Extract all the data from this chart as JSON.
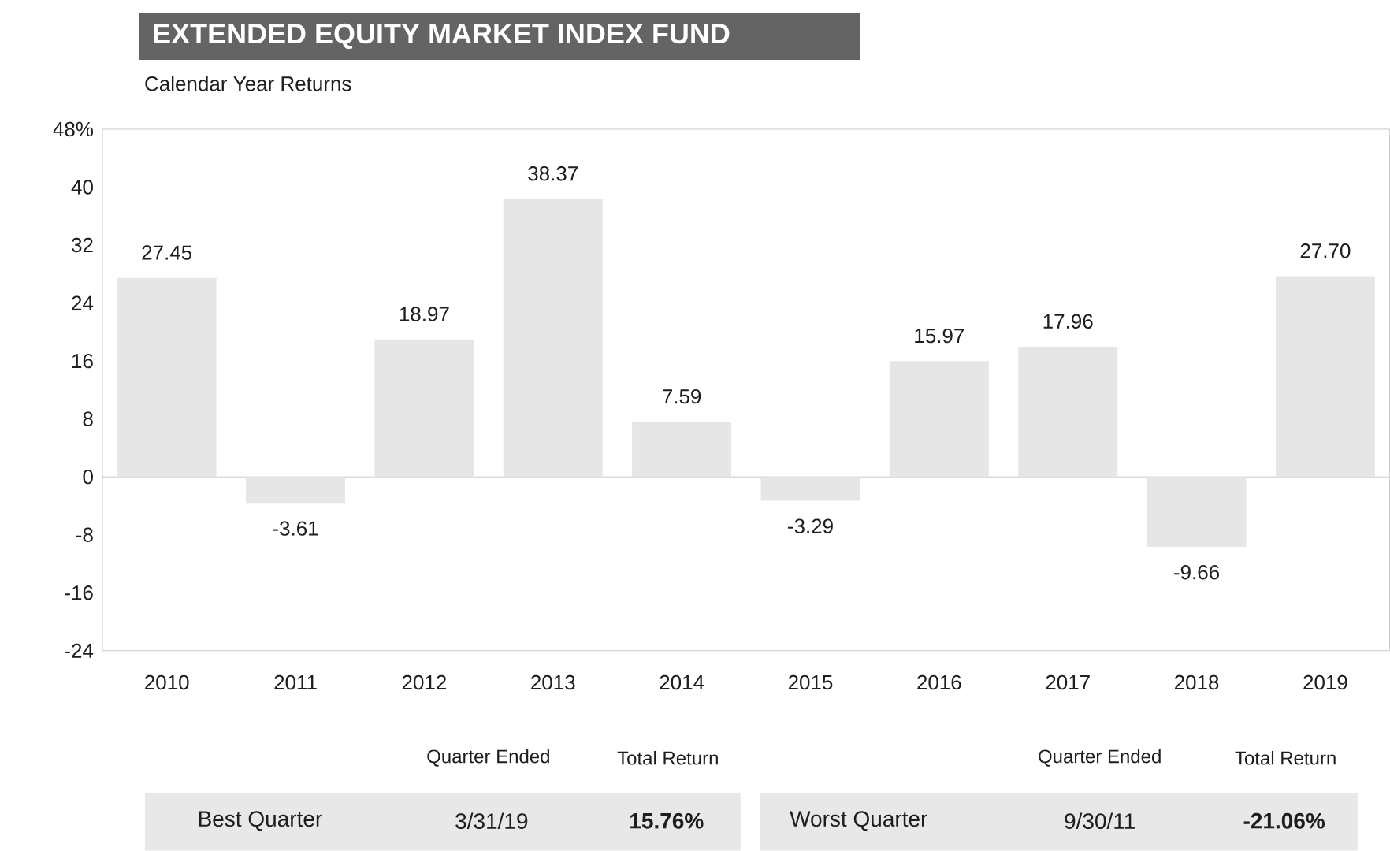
{
  "chart_data": {
    "type": "bar",
    "title": "EXTENDED EQUITY MARKET INDEX FUND",
    "subtitle": "Calendar Year Returns",
    "categories": [
      "2010",
      "2011",
      "2012",
      "2013",
      "2014",
      "2015",
      "2016",
      "2017",
      "2018",
      "2019"
    ],
    "values": [
      27.45,
      -3.61,
      18.97,
      38.37,
      7.59,
      -3.29,
      15.97,
      17.96,
      -9.66,
      27.7
    ],
    "value_labels": [
      "27.45",
      "-3.61",
      "18.97",
      "38.37",
      "7.59",
      "-3.29",
      "15.97",
      "17.96",
      "-9.66",
      "27.70"
    ],
    "color": "#e6e6e6",
    "ylim": [
      -24,
      48
    ],
    "yticks": [
      -24,
      -16,
      -8,
      0,
      8,
      16,
      24,
      32,
      40,
      {
        "value": 48,
        "label": "48%"
      }
    ],
    "ref_lines": [
      {
        "axis": "y",
        "value": 0,
        "color": "#bbbbbb"
      }
    ],
    "grid": false,
    "annotations": [
      "Quarter Ended",
      "Total Return",
      "Quarter Ended",
      "Total Return",
      "Best Quarter",
      "3/31/19",
      "15.76%",
      "Worst Quarter",
      "9/30/11",
      "-21.06%"
    ]
  }
}
